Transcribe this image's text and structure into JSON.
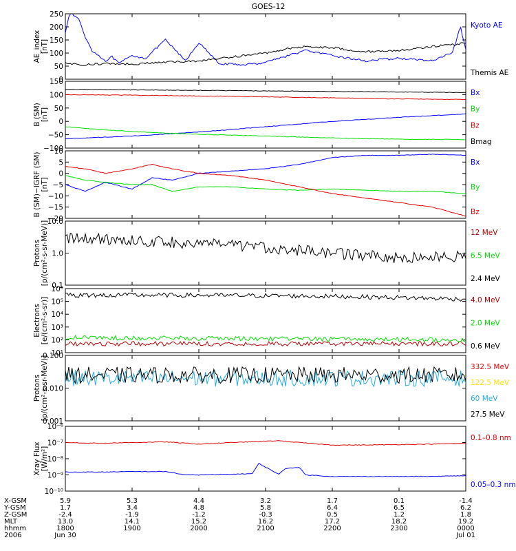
{
  "title": "GOES-12",
  "time_axis": {
    "start": "2006-06-30 18:00",
    "end": "2006-07-01 00:00",
    "ticks": [
      "1800",
      "1900",
      "2000",
      "2100",
      "2200",
      "2300",
      "0000"
    ],
    "dates": [
      "Jun 30",
      "Jul 01"
    ]
  },
  "orbit_table": {
    "row_labels": [
      "X-GSM",
      "Y-GSM",
      "Z-GSM",
      "MLT",
      "hhmm",
      "2006"
    ],
    "columns": [
      [
        "5.9",
        "1.7",
        "-2.4",
        "13.0",
        "1800",
        "Jun 30"
      ],
      [
        "5.3",
        "3.4",
        "-1.9",
        "14.1",
        "1900",
        ""
      ],
      [
        "4.4",
        "4.8",
        "-1.2",
        "15.2",
        "2000",
        ""
      ],
      [
        "3.2",
        "5.8",
        "-0.3",
        "16.2",
        "2100",
        ""
      ],
      [
        "1.7",
        "6.4",
        "0.5",
        "17.2",
        "2200",
        ""
      ],
      [
        "0.1",
        "6.5",
        "1.2",
        "18.2",
        "2300",
        ""
      ],
      [
        "-1.4",
        "6.2",
        "1.8",
        "19.2",
        "0000",
        "Jul 01"
      ]
    ]
  },
  "colors": {
    "blue": "#0000ff",
    "red": "#e00000",
    "green": "#00dd00",
    "black": "#000000",
    "darkred": "#aa0000",
    "yellow": "#ffdd00",
    "cyan": "#22aadd"
  },
  "chart_data": [
    {
      "type": "line",
      "ylabel": "AE_index\n[nT]",
      "ylim": [
        0,
        250
      ],
      "yticks": [
        "250",
        "200",
        "150",
        "100",
        "50",
        "0"
      ],
      "series": [
        {
          "name": "Kyoto AE",
          "color": "blue",
          "x": [
            0,
            0.05,
            0.1,
            0.2,
            0.3,
            0.4,
            0.5,
            0.6,
            0.7,
            0.8,
            1.0,
            1.2,
            1.5,
            1.8,
            2.0,
            2.3,
            2.6,
            2.9,
            3.2,
            3.6,
            4.0,
            4.5,
            5.0,
            5.5,
            5.8,
            5.92,
            6.0
          ],
          "y": [
            180,
            240,
            250,
            230,
            160,
            110,
            90,
            70,
            85,
            60,
            90,
            80,
            150,
            70,
            140,
            60,
            55,
            60,
            80,
            110,
            90,
            70,
            80,
            70,
            100,
            200,
            110
          ]
        },
        {
          "name": "Themis AE",
          "color": "black",
          "x": [
            0,
            0.3,
            0.6,
            1.0,
            1.5,
            2.0,
            2.5,
            3.0,
            3.3,
            3.6,
            4.0,
            4.5,
            5.0,
            5.5,
            5.9,
            6.0
          ],
          "y": [
            60,
            55,
            60,
            58,
            65,
            70,
            85,
            100,
            115,
            125,
            120,
            105,
            110,
            125,
            135,
            140
          ]
        }
      ]
    },
    {
      "type": "line",
      "ylabel": "B (SM)\n[nT]",
      "ylim": [
        -100,
        150
      ],
      "yticks": [
        "150",
        "100",
        "50",
        "0",
        "−50",
        "−100"
      ],
      "series": [
        {
          "name": "Bx",
          "color": "blue",
          "x": [
            0,
            1,
            2,
            3,
            4,
            5,
            6
          ],
          "y": [
            -65,
            -55,
            -40,
            -20,
            0,
            15,
            28
          ]
        },
        {
          "name": "By",
          "color": "green",
          "x": [
            0,
            0.5,
            1,
            1.5,
            2,
            3,
            4,
            5,
            6
          ],
          "y": [
            -20,
            -30,
            -38,
            -44,
            -48,
            -55,
            -62,
            -67,
            -68
          ]
        },
        {
          "name": "Bz",
          "color": "red",
          "x": [
            0,
            1,
            2,
            3,
            4,
            5,
            6
          ],
          "y": [
            100,
            98,
            95,
            92,
            88,
            84,
            82
          ]
        },
        {
          "name": "Bmag",
          "color": "black",
          "x": [
            0,
            1,
            2,
            3,
            4,
            5,
            6
          ],
          "y": [
            120,
            118,
            116,
            114,
            112,
            110,
            108
          ]
        }
      ]
    },
    {
      "type": "line",
      "ylabel": "B (SM)−IGRF (SM)\n[nT]",
      "ylim": [
        -20,
        10
      ],
      "yticks": [
        "10",
        "5",
        "0",
        "−5",
        "−10",
        "−15",
        "−20"
      ],
      "series": [
        {
          "name": "Bx",
          "color": "blue",
          "x": [
            0,
            0.3,
            0.6,
            1.0,
            1.3,
            1.6,
            2.0,
            2.5,
            3.0,
            3.5,
            4.0,
            4.5,
            5.0,
            5.5,
            6.0
          ],
          "y": [
            -5,
            -8,
            -4,
            -7,
            -2,
            -3,
            0,
            1,
            2,
            4,
            7,
            8,
            8,
            8.5,
            8
          ]
        },
        {
          "name": "By",
          "color": "green",
          "x": [
            0,
            0.3,
            0.6,
            1.0,
            1.3,
            1.6,
            2.0,
            2.5,
            3.0,
            3.5,
            4.0,
            4.5,
            5.0,
            5.5,
            6.0
          ],
          "y": [
            -1,
            -3,
            -4,
            -5,
            -5,
            -8,
            -6,
            -6,
            -7,
            -7.5,
            -7,
            -7.5,
            -8,
            -8,
            -9
          ]
        },
        {
          "name": "Bz",
          "color": "red",
          "x": [
            0,
            0.3,
            0.6,
            1.0,
            1.3,
            1.6,
            2.0,
            2.5,
            3.0,
            3.5,
            4.0,
            4.5,
            5.0,
            5.5,
            6.0
          ],
          "y": [
            3,
            2,
            0,
            2,
            4,
            2,
            0,
            -1,
            -3,
            -6,
            -9,
            -11,
            -13,
            -15,
            -19
          ]
        }
      ]
    },
    {
      "type": "line",
      "ylabel": "Protons\n[p/(cm²-s-sr-MeV)]",
      "yscale": "log",
      "ylim": [
        0.1,
        10
      ],
      "yticks": [
        "10.0",
        "1.0",
        "0.1"
      ],
      "series": [
        {
          "name": "12 MeV",
          "color": "darkred",
          "x": [],
          "y": []
        },
        {
          "name": "6.5 MeV",
          "color": "green",
          "x": [],
          "y": []
        },
        {
          "name": "2.4 MeV",
          "color": "black",
          "x": [
            0,
            1,
            2,
            3,
            4,
            5,
            6
          ],
          "y": [
            3,
            2.5,
            2,
            1.5,
            1.0,
            0.7,
            0.8
          ]
        }
      ]
    },
    {
      "type": "line",
      "ylabel": "Electrons\n[e/(cm²-s-sr)]",
      "yscale": "log",
      "ylim": [
        10,
        1000000
      ],
      "yticks": [
        "10⁶",
        "10⁵",
        "10⁴",
        "10³",
        "10²",
        "10¹"
      ],
      "series": [
        {
          "name": "4.0 MeV",
          "color": "darkred",
          "x": [
            0,
            6
          ],
          "y": [
            50,
            50
          ]
        },
        {
          "name": "2.0 MeV",
          "color": "green",
          "x": [
            0,
            6
          ],
          "y": [
            150,
            100
          ]
        },
        {
          "name": "0.6 MeV",
          "color": "black",
          "x": [
            0,
            1,
            2,
            3,
            4,
            5,
            6
          ],
          "y": [
            300000,
            310000,
            300000,
            280000,
            250000,
            200000,
            150000
          ]
        }
      ]
    },
    {
      "type": "line",
      "ylabel": "Protons\n[p/(cm²-s-sr-MeV)]",
      "yscale": "log",
      "ylim": [
        0.001,
        0.1
      ],
      "yticks": [
        "0.100",
        "0.010",
        "0.001"
      ],
      "series": [
        {
          "name": "332.5 MeV",
          "color": "red",
          "x": [],
          "y": []
        },
        {
          "name": "122.5 MeV",
          "color": "yellow",
          "x": [],
          "y": []
        },
        {
          "name": "60 MeV",
          "color": "cyan",
          "x": [
            0,
            6
          ],
          "y": [
            0.02,
            0.02
          ]
        },
        {
          "name": "27.5 MeV",
          "color": "black",
          "x": [
            0,
            6
          ],
          "y": [
            0.025,
            0.025
          ]
        }
      ]
    },
    {
      "type": "line",
      "ylabel": "Xray Flux\n[W/m²]",
      "yscale": "log",
      "ylim": [
        1e-10,
        1e-06
      ],
      "yticks": [
        "10⁻⁶",
        "10⁻⁷",
        "10⁻⁸",
        "10⁻⁹",
        "10⁻¹⁰"
      ],
      "series": [
        {
          "name": "0.1–0.8 nm",
          "color": "red",
          "x": [
            0,
            0.5,
            1.0,
            1.5,
            2.0,
            2.5,
            3.0,
            3.2,
            3.5,
            4.0,
            4.5,
            5.0,
            5.5,
            6.0
          ],
          "y": [
            1e-07,
            9e-08,
            1e-07,
            1.1e-07,
            8e-08,
            1e-07,
            1.2e-07,
            1.3e-07,
            1e-07,
            7e-08,
            7e-08,
            7.5e-08,
            8e-08,
            9e-08
          ]
        },
        {
          "name": "0.05–0.3 nm",
          "color": "blue",
          "x": [
            0,
            0.5,
            1.0,
            1.5,
            1.8,
            2.0,
            2.5,
            2.8,
            2.9,
            3.0,
            3.2,
            3.3,
            3.5,
            3.6,
            4.0,
            4.5,
            5.0,
            5.5,
            6.0
          ],
          "y": [
            1.5e-09,
            1.5e-09,
            1.6e-09,
            1.6e-09,
            1e-09,
            1e-09,
            1.1e-09,
            1.2e-09,
            5e-09,
            3e-09,
            1.1e-09,
            2.5e-09,
            3e-09,
            1e-09,
            8e-10,
            8e-10,
            8e-10,
            8e-10,
            9e-10
          ]
        }
      ]
    }
  ]
}
